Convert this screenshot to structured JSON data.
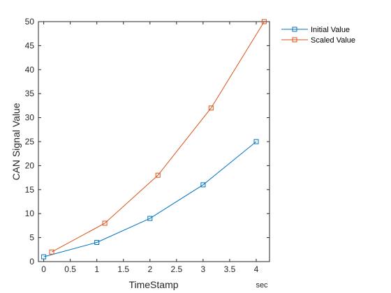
{
  "chart_data": {
    "type": "line",
    "xlabel": "TimeStamp",
    "ylabel": "CAN Signal Value",
    "x_unit": "sec",
    "xlim": [
      -0.1,
      4.25
    ],
    "ylim": [
      0,
      50
    ],
    "xticks": [
      0,
      0.5,
      1,
      1.5,
      2,
      2.5,
      3,
      3.5,
      4
    ],
    "xtick_labels": [
      "0",
      "0.5",
      "1",
      "1.5",
      "2",
      "2.5",
      "3",
      "3.5",
      "4"
    ],
    "yticks": [
      0,
      5,
      10,
      15,
      20,
      25,
      30,
      35,
      40,
      45,
      50
    ],
    "ytick_labels": [
      "0",
      "5",
      "10",
      "15",
      "20",
      "25",
      "30",
      "35",
      "40",
      "45",
      "50"
    ],
    "grid": false,
    "legend_position": "outside-top-right",
    "series": [
      {
        "name": "Initial Value",
        "color": "#0072BD",
        "marker": "square",
        "x": [
          0,
          1,
          2,
          3,
          4
        ],
        "y": [
          1,
          4,
          9,
          16,
          25
        ]
      },
      {
        "name": "Scaled Value",
        "color": "#D95319",
        "marker": "square",
        "x": [
          0.15,
          1.15,
          2.15,
          3.15,
          4.15
        ],
        "y": [
          2,
          8,
          18,
          32,
          50
        ]
      }
    ]
  }
}
